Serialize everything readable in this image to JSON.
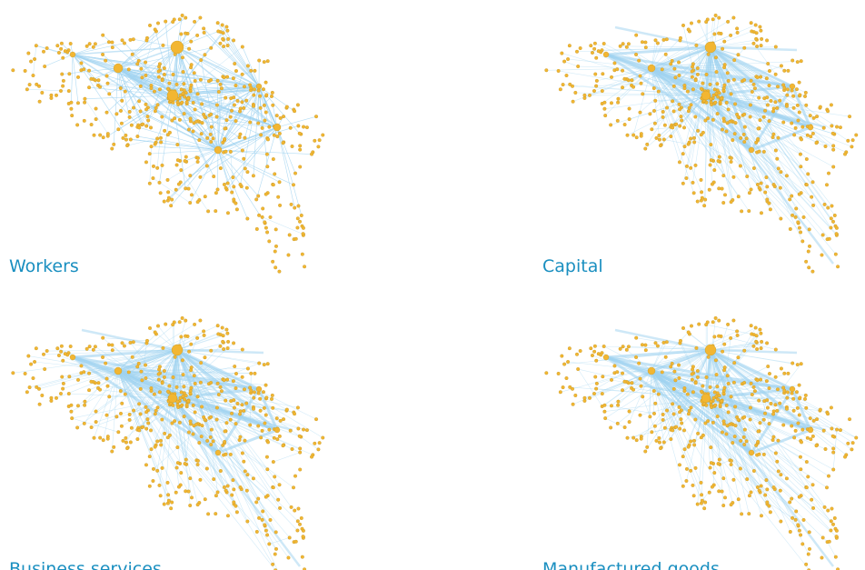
{
  "panels": [
    {
      "label": "Workers"
    },
    {
      "label": "Capital"
    },
    {
      "label": "Business services"
    },
    {
      "label": "Manufactured goods"
    }
  ]
}
